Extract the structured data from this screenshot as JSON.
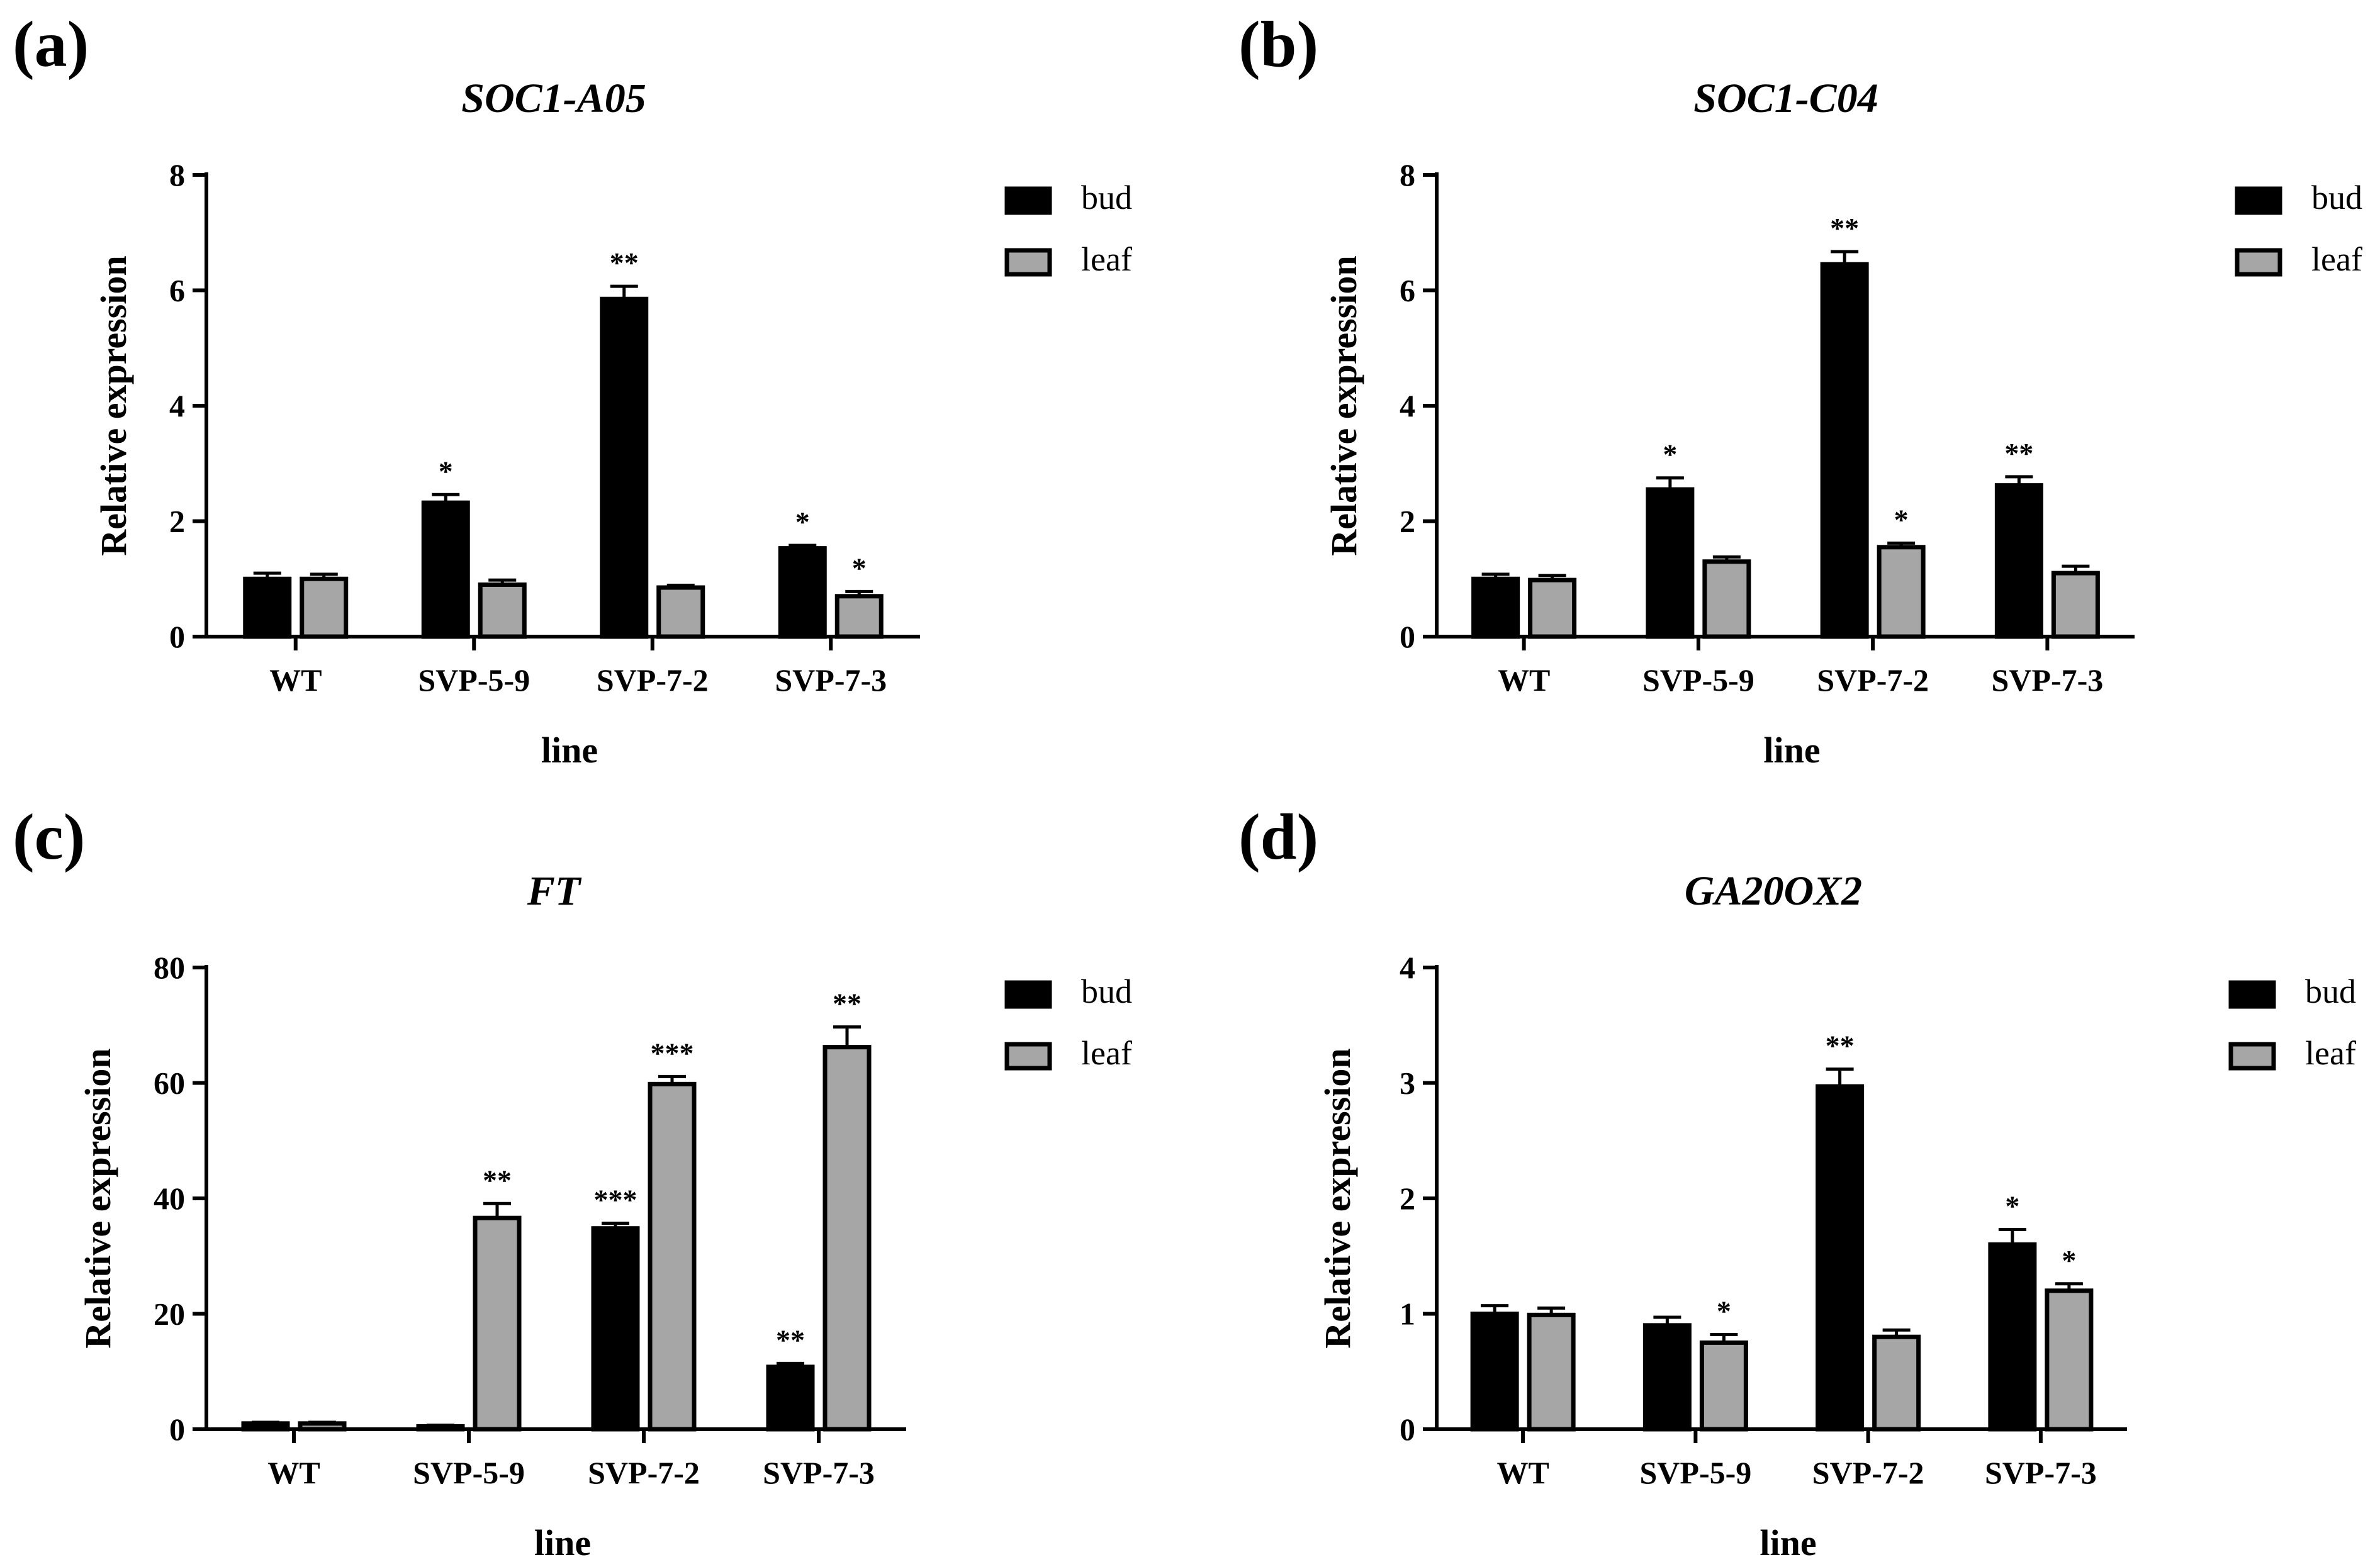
{
  "figure": {
    "panels": [
      {
        "label": "(a)",
        "title": "SOC1-A05"
      },
      {
        "label": "(b)",
        "title": "SOC1-C04"
      },
      {
        "label": "(c)",
        "title": "FT"
      },
      {
        "label": "(d)",
        "title": "GA20OX2"
      }
    ]
  },
  "chart_data": [
    {
      "type": "bar",
      "title": "SOC1-A05",
      "panel_label": "(a)",
      "xlabel": "line",
      "ylabel": "Relative expression",
      "categories": [
        "WT",
        "SVP-5-9",
        "SVP-7-2",
        "SVP-7-3"
      ],
      "ylim": [
        0,
        8
      ],
      "yticks": [
        0,
        2,
        4,
        6,
        8
      ],
      "legend_position": "top-right",
      "series": [
        {
          "name": "bud",
          "color": "#000000",
          "values": [
            1.0,
            2.32,
            5.85,
            1.53
          ],
          "errors": [
            0.1,
            0.14,
            0.22,
            0.05
          ],
          "significance": [
            "",
            "*",
            "**",
            "*"
          ]
        },
        {
          "name": "leaf",
          "color": "#a6a6a6",
          "values": [
            1.0,
            0.9,
            0.85,
            0.7
          ],
          "errors": [
            0.08,
            0.08,
            0.04,
            0.08
          ],
          "significance": [
            "",
            "",
            "",
            "*"
          ]
        }
      ]
    },
    {
      "type": "bar",
      "title": "SOC1-C04",
      "panel_label": "(b)",
      "xlabel": "line",
      "ylabel": "Relative expression",
      "categories": [
        "WT",
        "SVP-5-9",
        "SVP-7-2",
        "SVP-7-3"
      ],
      "ylim": [
        0,
        8
      ],
      "yticks": [
        0,
        2,
        4,
        6,
        8
      ],
      "legend_position": "top-right",
      "series": [
        {
          "name": "bud",
          "color": "#000000",
          "values": [
            1.0,
            2.55,
            6.45,
            2.62
          ],
          "errors": [
            0.08,
            0.2,
            0.22,
            0.15
          ],
          "significance": [
            "",
            "*",
            "**",
            "**"
          ]
        },
        {
          "name": "leaf",
          "color": "#a6a6a6",
          "values": [
            0.98,
            1.3,
            1.55,
            1.1
          ],
          "errors": [
            0.08,
            0.08,
            0.07,
            0.12
          ],
          "significance": [
            "",
            "",
            "*",
            ""
          ]
        }
      ]
    },
    {
      "type": "bar",
      "title": "FT",
      "panel_label": "(c)",
      "xlabel": "line",
      "ylabel": "Relative expression",
      "categories": [
        "WT",
        "SVP-5-9",
        "SVP-7-2",
        "SVP-7-3"
      ],
      "ylim": [
        0,
        80
      ],
      "yticks": [
        0,
        20,
        40,
        60,
        80
      ],
      "legend_position": "top-right",
      "series": [
        {
          "name": "bud",
          "color": "#000000",
          "values": [
            1.0,
            0.5,
            34.8,
            10.8
          ],
          "errors": [
            0.2,
            0.2,
            0.9,
            0.6
          ],
          "significance": [
            "",
            "",
            "***",
            "**"
          ]
        },
        {
          "name": "leaf",
          "color": "#a6a6a6",
          "values": [
            1.0,
            36.6,
            59.8,
            66.2
          ],
          "errors": [
            0.2,
            2.5,
            1.3,
            3.5
          ],
          "significance": [
            "",
            "**",
            "***",
            "**"
          ]
        }
      ]
    },
    {
      "type": "bar",
      "title": "GA20OX2",
      "panel_label": "(d)",
      "xlabel": "line",
      "ylabel": "Relative expression",
      "categories": [
        "WT",
        "SVP-5-9",
        "SVP-7-2",
        "SVP-7-3"
      ],
      "ylim": [
        0,
        4
      ],
      "yticks": [
        0,
        1,
        2,
        3,
        4
      ],
      "legend_position": "top-right",
      "series": [
        {
          "name": "bud",
          "color": "#000000",
          "values": [
            1.0,
            0.9,
            2.97,
            1.6
          ],
          "errors": [
            0.07,
            0.07,
            0.15,
            0.13
          ],
          "significance": [
            "",
            "",
            "**",
            "*"
          ]
        },
        {
          "name": "leaf",
          "color": "#a6a6a6",
          "values": [
            0.99,
            0.75,
            0.8,
            1.2
          ],
          "errors": [
            0.06,
            0.07,
            0.06,
            0.06
          ],
          "significance": [
            "",
            "*",
            "",
            "*"
          ]
        }
      ]
    }
  ]
}
